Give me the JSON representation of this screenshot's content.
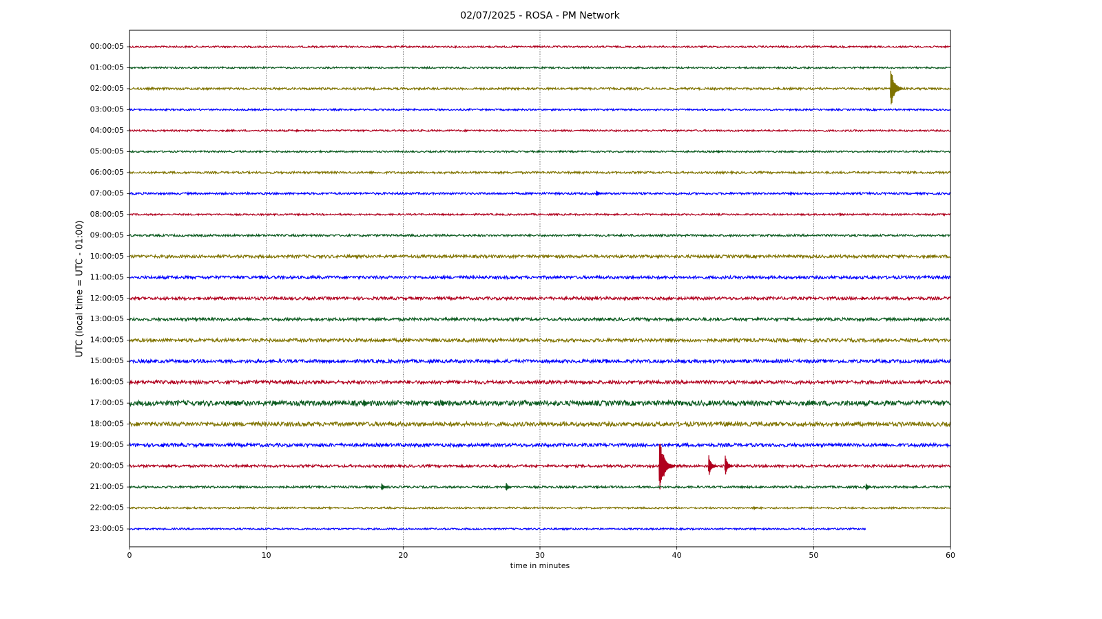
{
  "chart_data": {
    "type": "helicorder",
    "title": "02/07/2025 - ROSA - PM Network",
    "xlabel": "time in minutes",
    "ylabel": "UTC (local time = UTC - 01:00)",
    "xlim": [
      0,
      60
    ],
    "xticks": [
      0,
      10,
      20,
      30,
      40,
      50,
      60
    ],
    "grid": true,
    "colors": [
      "#b0001e",
      "#0b5a1f",
      "#7f7300",
      "#0000ff"
    ],
    "categories": [
      "00:00:05",
      "01:00:05",
      "02:00:05",
      "03:00:05",
      "04:00:05",
      "05:00:05",
      "06:00:05",
      "07:00:05",
      "08:00:05",
      "09:00:05",
      "10:00:05",
      "11:00:05",
      "12:00:05",
      "13:00:05",
      "14:00:05",
      "15:00:05",
      "16:00:05",
      "17:00:05",
      "18:00:05",
      "19:00:05",
      "20:00:05",
      "21:00:05",
      "22:00:05",
      "23:00:05"
    ],
    "rows": [
      {
        "end": 60,
        "noise": 0.04,
        "events": []
      },
      {
        "end": 60,
        "noise": 0.04,
        "events": []
      },
      {
        "end": 60,
        "noise": 0.05,
        "events": [
          {
            "x": 55.6,
            "amp": 1.1
          },
          {
            "x": 58.6,
            "amp": 0.06
          }
        ]
      },
      {
        "end": 60,
        "noise": 0.04,
        "events": []
      },
      {
        "end": 60,
        "noise": 0.04,
        "events": [
          {
            "x": 12.2,
            "amp": 0.06
          }
        ]
      },
      {
        "end": 60,
        "noise": 0.04,
        "events": [
          {
            "x": 43.0,
            "amp": 0.06
          }
        ]
      },
      {
        "end": 60,
        "noise": 0.05,
        "events": []
      },
      {
        "end": 60,
        "noise": 0.05,
        "events": [
          {
            "x": 34.1,
            "amp": 0.18
          }
        ]
      },
      {
        "end": 60,
        "noise": 0.04,
        "events": [
          {
            "x": 51.9,
            "amp": 0.08
          }
        ]
      },
      {
        "end": 60,
        "noise": 0.05,
        "events": []
      },
      {
        "end": 60,
        "noise": 0.07,
        "events": []
      },
      {
        "end": 60,
        "noise": 0.07,
        "events": [
          {
            "x": 9.5,
            "amp": 0.08
          }
        ]
      },
      {
        "end": 60,
        "noise": 0.07,
        "events": [
          {
            "x": 53.5,
            "amp": 0.08
          }
        ]
      },
      {
        "end": 60,
        "noise": 0.07,
        "events": []
      },
      {
        "end": 60,
        "noise": 0.08,
        "events": [
          {
            "x": 18.5,
            "amp": 0.1
          }
        ]
      },
      {
        "end": 60,
        "noise": 0.08,
        "events": [
          {
            "x": 34.8,
            "amp": 0.12
          }
        ]
      },
      {
        "end": 60,
        "noise": 0.08,
        "events": []
      },
      {
        "end": 60,
        "noise": 0.12,
        "events": [
          {
            "x": 17.1,
            "amp": 0.25
          },
          {
            "x": 22.8,
            "amp": 0.2
          },
          {
            "x": 10.6,
            "amp": 0.15
          }
        ]
      },
      {
        "end": 60,
        "noise": 0.1,
        "events": [
          {
            "x": 43.6,
            "amp": 0.12
          }
        ]
      },
      {
        "end": 60,
        "noise": 0.08,
        "events": [
          {
            "x": 2.3,
            "amp": 0.08
          }
        ]
      },
      {
        "end": 60,
        "noise": 0.06,
        "events": [
          {
            "x": 38.7,
            "amp": 1.45
          },
          {
            "x": 39.0,
            "amp": 0.7
          },
          {
            "x": 42.3,
            "amp": 0.6
          },
          {
            "x": 43.5,
            "amp": 0.55
          }
        ]
      },
      {
        "end": 60,
        "noise": 0.05,
        "events": [
          {
            "x": 18.4,
            "amp": 0.25
          },
          {
            "x": 27.5,
            "amp": 0.25
          },
          {
            "x": 53.8,
            "amp": 0.2
          }
        ]
      },
      {
        "end": 60,
        "noise": 0.04,
        "events": [
          {
            "x": 45.6,
            "amp": 0.1
          }
        ]
      },
      {
        "end": 53.8,
        "noise": 0.04,
        "events": []
      }
    ]
  }
}
